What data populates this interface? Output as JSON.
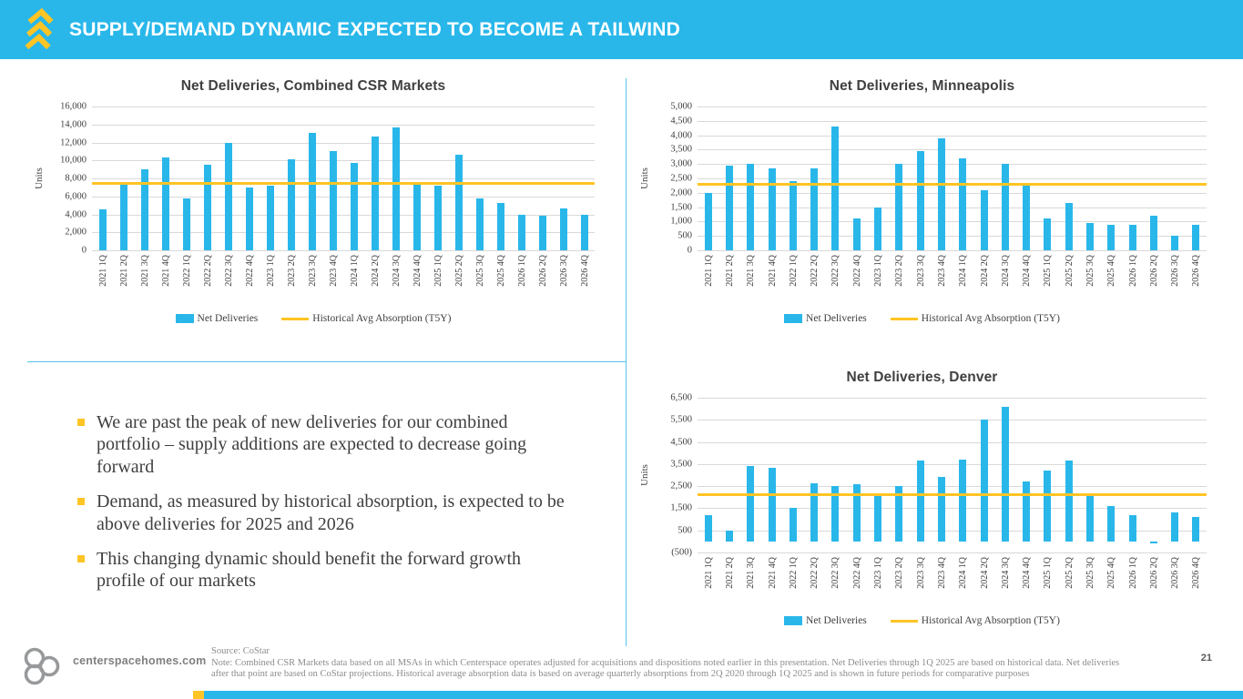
{
  "slide": {
    "title": "SUPPLY/DEMAND DYNAMIC EXPECTED TO BECOME A TAILWIND",
    "page_number": "21",
    "website": "centerspacehomes.com"
  },
  "colors": {
    "accent_cyan": "#29B7EA",
    "accent_yellow": "#FFC425",
    "divider": "#55C4EA"
  },
  "icons": {
    "header_logo": "triple-chevron-up-icon",
    "footer_logo": "centerspace-rings-icon"
  },
  "bullets": [
    "We are past the peak of new deliveries for our combined portfolio – supply additions are expected to decrease going forward",
    "Demand, as measured by historical absorption, is expected to be above deliveries for 2025 and 2026",
    "This changing dynamic should benefit the forward growth profile of our markets"
  ],
  "footnote": {
    "source": "Source: CoStar",
    "note": "Note: Combined CSR Markets data based on all MSAs in which Centerspace operates adjusted for acquisitions and dispositions noted earlier in this presentation. Net Deliveries through 1Q 2025 are based on historical data. Net deliveries after that point are based on CoStar projections. Historical average absorption data is based on average quarterly absorptions from 2Q 2020 through 1Q 2025 and is shown in future periods for comparative purposes"
  },
  "chart_data": [
    {
      "type": "bar",
      "title": "Net Deliveries, Combined CSR Markets",
      "ylabel": "Units",
      "legend": [
        "Net Deliveries",
        "Historical Avg Absorption (T5Y)"
      ],
      "legend_position": "bottom",
      "grid": true,
      "ylim": [
        0,
        16000
      ],
      "yticks": [
        16000,
        14000,
        12000,
        10000,
        8000,
        6000,
        4000,
        2000,
        0
      ],
      "ytick_labels": [
        "16,000",
        "14,000",
        "12,000",
        "10,000",
        "8,000",
        "6,000",
        "4,000",
        "2,000",
        "0"
      ],
      "categories": [
        "2021 1Q",
        "2021 2Q",
        "2021 3Q",
        "2021 4Q",
        "2022 1Q",
        "2022 2Q",
        "2022 3Q",
        "2022 4Q",
        "2023 1Q",
        "2023 2Q",
        "2023 3Q",
        "2023 4Q",
        "2024 1Q",
        "2024 2Q",
        "2024 3Q",
        "2024 4Q",
        "2025 1Q",
        "2025 2Q",
        "2025 3Q",
        "2025 4Q",
        "2026 1Q",
        "2026 2Q",
        "2026 3Q",
        "2026 4Q"
      ],
      "values": [
        4600,
        7500,
        9000,
        10300,
        5800,
        9500,
        12000,
        7000,
        7200,
        10100,
        13100,
        11000,
        9700,
        12700,
        13700,
        7300,
        7200,
        10600,
        5800,
        5300,
        4000,
        3800,
        4700,
        3900
      ],
      "avg_line": 7400
    },
    {
      "type": "bar",
      "title": "Net Deliveries, Minneapolis",
      "ylabel": "Units",
      "legend": [
        "Net Deliveries",
        "Historical Avg Absorption (T5Y)"
      ],
      "legend_position": "bottom",
      "grid": true,
      "ylim": [
        0,
        5000
      ],
      "yticks": [
        5000,
        4500,
        4000,
        3500,
        3000,
        2500,
        2000,
        1500,
        1000,
        500,
        0
      ],
      "ytick_labels": [
        "5,000",
        "4,500",
        "4,000",
        "3,500",
        "3,000",
        "2,500",
        "2,000",
        "1,500",
        "1,000",
        "500",
        "0"
      ],
      "categories": [
        "2021 1Q",
        "2021 2Q",
        "2021 3Q",
        "2021 4Q",
        "2022 1Q",
        "2022 2Q",
        "2022 3Q",
        "2022 4Q",
        "2023 1Q",
        "2023 2Q",
        "2023 3Q",
        "2023 4Q",
        "2024 1Q",
        "2024 2Q",
        "2024 3Q",
        "2024 4Q",
        "2025 1Q",
        "2025 2Q",
        "2025 3Q",
        "2025 4Q",
        "2026 1Q",
        "2026 2Q",
        "2026 3Q",
        "2026 4Q"
      ],
      "values": [
        2000,
        2950,
        3000,
        2850,
        2400,
        2850,
        4300,
        1100,
        1500,
        3000,
        3450,
        3900,
        3200,
        2100,
        3000,
        2250,
        1100,
        1650,
        950,
        900,
        900,
        1200,
        500,
        900
      ],
      "avg_line": 2300
    },
    {
      "type": "bar",
      "title": "Net Deliveries, Denver",
      "ylabel": "Units",
      "legend": [
        "Net Deliveries",
        "Historical Avg Absorption (T5Y)"
      ],
      "legend_position": "bottom",
      "grid": true,
      "ylim": [
        -500,
        6500
      ],
      "yticks": [
        6500,
        5500,
        4500,
        3500,
        2500,
        1500,
        500,
        -500
      ],
      "ytick_labels": [
        "6,500",
        "5,500",
        "4,500",
        "3,500",
        "2,500",
        "1,500",
        "500",
        "(500)"
      ],
      "categories": [
        "2021 1Q",
        "2021 2Q",
        "2021 3Q",
        "2021 4Q",
        "2022 1Q",
        "2022 2Q",
        "2022 3Q",
        "2022 4Q",
        "2023 1Q",
        "2023 2Q",
        "2023 3Q",
        "2023 4Q",
        "2024 1Q",
        "2024 2Q",
        "2024 3Q",
        "2024 4Q",
        "2025 1Q",
        "2025 2Q",
        "2025 3Q",
        "2025 4Q",
        "2026 1Q",
        "2026 2Q",
        "2026 3Q",
        "2026 4Q"
      ],
      "values": [
        1200,
        500,
        3400,
        3350,
        1500,
        2650,
        2500,
        2600,
        2150,
        2500,
        3650,
        2900,
        3700,
        5500,
        6100,
        2700,
        3200,
        3650,
        2100,
        1600,
        1200,
        -100,
        1300,
        1100
      ],
      "avg_line": 2100
    }
  ]
}
